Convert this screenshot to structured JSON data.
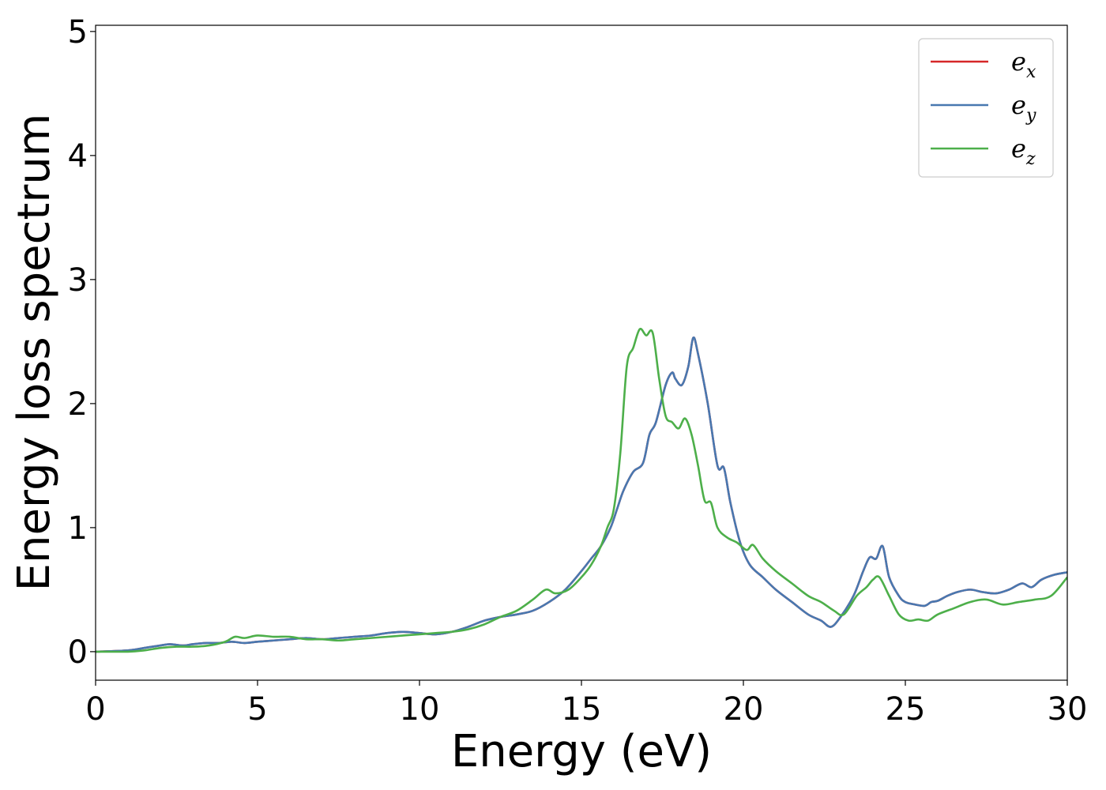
{
  "chart_data": {
    "type": "line",
    "title": "",
    "xlabel": "Energy (eV)",
    "ylabel": "Energy loss spectrum",
    "xlim": [
      0,
      30
    ],
    "ylim": [
      -0.23,
      5.05
    ],
    "xticks": [
      0,
      5,
      10,
      15,
      20,
      25,
      30
    ],
    "yticks": [
      0,
      1,
      2,
      3,
      4,
      5
    ],
    "grid": false,
    "legend_position": "top-right",
    "series": [
      {
        "name": "e_x",
        "label_main": "e",
        "label_sub": "x",
        "color": "#d62728",
        "x": [
          0,
          1,
          1.5,
          2,
          2.3,
          2.7,
          3,
          3.4,
          3.8,
          4.2,
          4.6,
          5,
          5.5,
          6,
          6.5,
          7,
          7.5,
          8,
          8.5,
          9,
          9.5,
          10,
          10.5,
          11,
          11.5,
          12,
          12.5,
          13,
          13.5,
          14,
          14.5,
          15,
          15.3,
          15.6,
          15.9,
          16.1,
          16.3,
          16.6,
          16.9,
          17.1,
          17.3,
          17.6,
          17.8,
          17.9,
          18.1,
          18.3,
          18.45,
          18.6,
          18.9,
          19.2,
          19.4,
          19.6,
          19.9,
          20.2,
          20.6,
          21,
          21.5,
          22,
          22.4,
          22.7,
          23,
          23.4,
          23.7,
          23.9,
          24.1,
          24.3,
          24.5,
          24.8,
          25,
          25.3,
          25.6,
          25.8,
          26,
          26.3,
          26.6,
          27,
          27.4,
          27.8,
          28.2,
          28.6,
          28.9,
          29.2,
          29.6,
          30
        ],
        "y": [
          0.0,
          0.01,
          0.03,
          0.05,
          0.06,
          0.05,
          0.06,
          0.07,
          0.07,
          0.08,
          0.07,
          0.08,
          0.09,
          0.1,
          0.11,
          0.1,
          0.11,
          0.12,
          0.13,
          0.15,
          0.16,
          0.15,
          0.14,
          0.16,
          0.2,
          0.25,
          0.28,
          0.3,
          0.33,
          0.4,
          0.5,
          0.65,
          0.75,
          0.85,
          1.0,
          1.15,
          1.3,
          1.45,
          1.52,
          1.75,
          1.85,
          2.15,
          2.25,
          2.2,
          2.15,
          2.3,
          2.53,
          2.4,
          2.0,
          1.5,
          1.48,
          1.2,
          0.88,
          0.7,
          0.6,
          0.5,
          0.4,
          0.3,
          0.25,
          0.2,
          0.28,
          0.45,
          0.65,
          0.76,
          0.75,
          0.85,
          0.6,
          0.45,
          0.4,
          0.38,
          0.37,
          0.4,
          0.41,
          0.45,
          0.48,
          0.5,
          0.48,
          0.47,
          0.5,
          0.55,
          0.52,
          0.58,
          0.62,
          0.64
        ]
      },
      {
        "name": "e_y",
        "label_main": "e",
        "label_sub": "y",
        "color": "#4878b0",
        "x": [
          0,
          1,
          1.5,
          2,
          2.3,
          2.7,
          3,
          3.4,
          3.8,
          4.2,
          4.6,
          5,
          5.5,
          6,
          6.5,
          7,
          7.5,
          8,
          8.5,
          9,
          9.5,
          10,
          10.5,
          11,
          11.5,
          12,
          12.5,
          13,
          13.5,
          14,
          14.5,
          15,
          15.3,
          15.6,
          15.9,
          16.1,
          16.3,
          16.6,
          16.9,
          17.1,
          17.3,
          17.6,
          17.8,
          17.9,
          18.1,
          18.3,
          18.45,
          18.6,
          18.9,
          19.2,
          19.4,
          19.6,
          19.9,
          20.2,
          20.6,
          21,
          21.5,
          22,
          22.4,
          22.7,
          23,
          23.4,
          23.7,
          23.9,
          24.1,
          24.3,
          24.5,
          24.8,
          25,
          25.3,
          25.6,
          25.8,
          26,
          26.3,
          26.6,
          27,
          27.4,
          27.8,
          28.2,
          28.6,
          28.9,
          29.2,
          29.6,
          30
        ],
        "y": [
          0.0,
          0.01,
          0.03,
          0.05,
          0.06,
          0.05,
          0.06,
          0.07,
          0.07,
          0.08,
          0.07,
          0.08,
          0.09,
          0.1,
          0.11,
          0.1,
          0.11,
          0.12,
          0.13,
          0.15,
          0.16,
          0.15,
          0.14,
          0.16,
          0.2,
          0.25,
          0.28,
          0.3,
          0.33,
          0.4,
          0.5,
          0.65,
          0.75,
          0.85,
          1.0,
          1.15,
          1.3,
          1.45,
          1.52,
          1.75,
          1.85,
          2.15,
          2.25,
          2.2,
          2.15,
          2.3,
          2.53,
          2.4,
          2.0,
          1.5,
          1.48,
          1.2,
          0.88,
          0.7,
          0.6,
          0.5,
          0.4,
          0.3,
          0.25,
          0.2,
          0.28,
          0.45,
          0.65,
          0.76,
          0.75,
          0.85,
          0.6,
          0.45,
          0.4,
          0.38,
          0.37,
          0.4,
          0.41,
          0.45,
          0.48,
          0.5,
          0.48,
          0.47,
          0.5,
          0.55,
          0.52,
          0.58,
          0.62,
          0.64
        ]
      },
      {
        "name": "e_z",
        "label_main": "e",
        "label_sub": "z",
        "color": "#4daf4a",
        "x": [
          0,
          1,
          1.5,
          2,
          2.5,
          3,
          3.5,
          4,
          4.3,
          4.6,
          5,
          5.5,
          6,
          6.5,
          7,
          7.5,
          8,
          8.5,
          9,
          9.5,
          10,
          10.5,
          11,
          11.5,
          12,
          12.5,
          13,
          13.5,
          13.9,
          14.2,
          14.6,
          15,
          15.3,
          15.6,
          15.8,
          16,
          16.2,
          16.4,
          16.6,
          16.8,
          17,
          17.2,
          17.4,
          17.6,
          17.8,
          18,
          18.2,
          18.4,
          18.6,
          18.8,
          19,
          19.2,
          19.5,
          19.8,
          20.1,
          20.3,
          20.6,
          21,
          21.5,
          22,
          22.4,
          22.8,
          23.1,
          23.5,
          23.8,
          24,
          24.2,
          24.5,
          24.8,
          25.1,
          25.4,
          25.7,
          26,
          26.5,
          27,
          27.5,
          28,
          28.5,
          29,
          29.5,
          30
        ],
        "y": [
          0.0,
          0.0,
          0.01,
          0.03,
          0.04,
          0.04,
          0.05,
          0.08,
          0.12,
          0.11,
          0.13,
          0.12,
          0.12,
          0.1,
          0.1,
          0.09,
          0.1,
          0.11,
          0.12,
          0.13,
          0.14,
          0.15,
          0.16,
          0.18,
          0.22,
          0.28,
          0.33,
          0.42,
          0.5,
          0.47,
          0.5,
          0.6,
          0.7,
          0.85,
          1.0,
          1.15,
          1.6,
          2.3,
          2.45,
          2.6,
          2.55,
          2.57,
          2.2,
          1.9,
          1.85,
          1.8,
          1.88,
          1.75,
          1.5,
          1.22,
          1.2,
          1.0,
          0.92,
          0.88,
          0.82,
          0.86,
          0.75,
          0.65,
          0.55,
          0.45,
          0.4,
          0.33,
          0.3,
          0.45,
          0.52,
          0.58,
          0.6,
          0.45,
          0.3,
          0.25,
          0.26,
          0.25,
          0.3,
          0.35,
          0.4,
          0.42,
          0.38,
          0.4,
          0.42,
          0.45,
          0.6
        ]
      }
    ]
  }
}
